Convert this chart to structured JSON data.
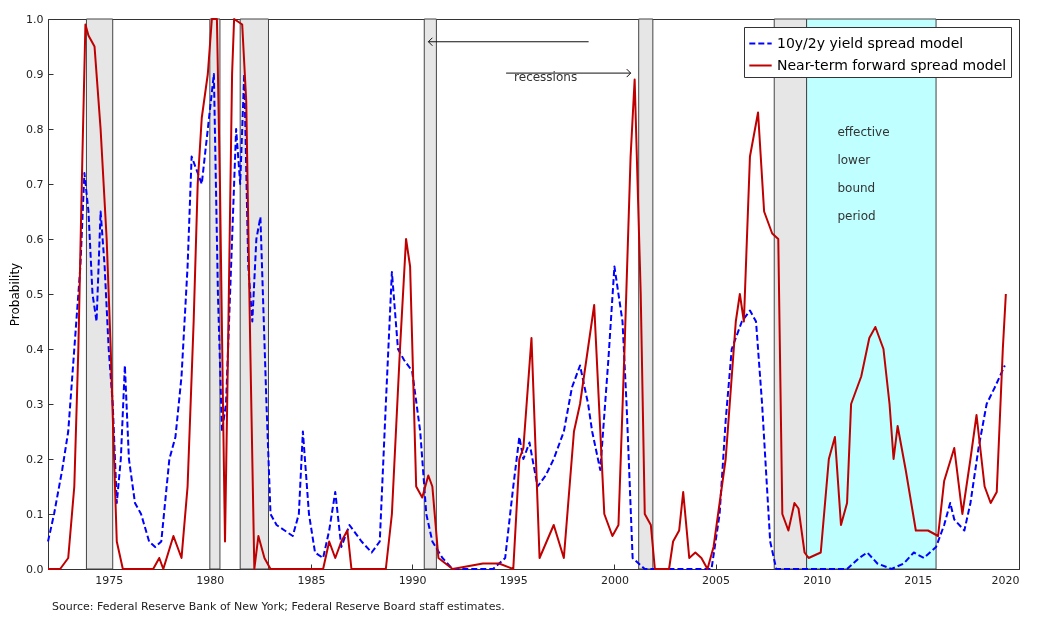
{
  "chart_data": {
    "type": "line",
    "ylabel": "Probability",
    "xlim": [
      1972,
      2020
    ],
    "xticks": [
      1975,
      1980,
      1985,
      1990,
      1995,
      2000,
      2005,
      2010,
      2015,
      2020
    ],
    "ylim": [
      0,
      1
    ],
    "yticks": [
      {
        "value": 0,
        "label": "0.0"
      },
      {
        "value": 0.1,
        "label": "0.1"
      },
      {
        "value": 0.2,
        "label": "0.2"
      },
      {
        "value": 0.3,
        "label": "0.3"
      },
      {
        "value": 0.4,
        "label": "0.4"
      },
      {
        "value": 0.5,
        "label": "0.5"
      },
      {
        "value": 0.6,
        "label": "0.6"
      },
      {
        "value": 0.7,
        "label": "0.7"
      },
      {
        "value": 0.8,
        "label": "0.8"
      },
      {
        "value": 0.9,
        "label": "0.9"
      },
      {
        "value": 1,
        "label": "1.0"
      }
    ],
    "grid": false,
    "legend": "top right",
    "series": [
      {
        "name": "10y/2y yield spread model",
        "color": "#0000ff",
        "line_style": "dashed",
        "x": [
          1972.0,
          1972.3,
          1972.7,
          1973.0,
          1973.3,
          1973.6,
          1973.8,
          1974.0,
          1974.2,
          1974.4,
          1974.6,
          1974.8,
          1975.0,
          1975.2,
          1975.4,
          1975.6,
          1975.8,
          1976.0,
          1976.3,
          1976.6,
          1977.0,
          1977.3,
          1977.6,
          1978.0,
          1978.3,
          1978.6,
          1978.9,
          1979.1,
          1979.4,
          1979.6,
          1979.9,
          1980.2,
          1980.4,
          1980.6,
          1980.8,
          1981.1,
          1981.3,
          1981.5,
          1981.7,
          1981.9,
          1982.1,
          1982.3,
          1982.5,
          1982.8,
          1983.0,
          1983.3,
          1983.7,
          1984.1,
          1984.4,
          1984.6,
          1984.9,
          1985.2,
          1985.6,
          1985.9,
          1986.2,
          1986.5,
          1986.9,
          1987.5,
          1988.0,
          1988.4,
          1988.7,
          1989.0,
          1989.3,
          1989.6,
          1990.0,
          1990.4,
          1990.7,
          1991.0,
          1991.5,
          1992.0,
          1994.0,
          1994.6,
          1995.0,
          1995.3,
          1995.5,
          1995.8,
          1996.2,
          1996.6,
          1997.0,
          1997.5,
          1997.9,
          1998.3,
          1998.7,
          1998.9,
          1999.3,
          1999.7,
          2000.0,
          2000.4,
          2000.6,
          2000.9,
          2001.5,
          2004.8,
          2005.2,
          2005.5,
          2005.8,
          2006.0,
          2006.3,
          2006.7,
          2007.0,
          2007.3,
          2007.7,
          2008.0,
          2011.5,
          2012.1,
          2012.5,
          2013.0,
          2013.7,
          2014.3,
          2014.8,
          2015.3,
          2015.9,
          2016.3,
          2016.6,
          2016.8,
          2017.3,
          2017.6,
          2018.0,
          2018.4,
          2018.8,
          2019.3
        ],
        "values": [
          0.05,
          0.1,
          0.18,
          0.25,
          0.4,
          0.55,
          0.72,
          0.65,
          0.5,
          0.45,
          0.65,
          0.55,
          0.4,
          0.3,
          0.12,
          0.2,
          0.37,
          0.2,
          0.12,
          0.1,
          0.05,
          0.04,
          0.05,
          0.2,
          0.24,
          0.35,
          0.55,
          0.75,
          0.72,
          0.7,
          0.8,
          0.9,
          0.5,
          0.25,
          0.3,
          0.6,
          0.8,
          0.7,
          0.9,
          0.55,
          0.45,
          0.6,
          0.64,
          0.3,
          0.1,
          0.08,
          0.07,
          0.06,
          0.1,
          0.25,
          0.1,
          0.03,
          0.02,
          0.07,
          0.14,
          0.04,
          0.08,
          0.05,
          0.03,
          0.05,
          0.3,
          0.54,
          0.4,
          0.38,
          0.36,
          0.25,
          0.1,
          0.05,
          0.02,
          0.0,
          0.0,
          0.02,
          0.15,
          0.24,
          0.2,
          0.23,
          0.15,
          0.17,
          0.2,
          0.25,
          0.33,
          0.37,
          0.3,
          0.25,
          0.18,
          0.38,
          0.55,
          0.45,
          0.3,
          0.02,
          0.0,
          0.0,
          0.1,
          0.27,
          0.4,
          0.42,
          0.45,
          0.47,
          0.45,
          0.3,
          0.05,
          0.0,
          0.0,
          0.02,
          0.03,
          0.01,
          0.0,
          0.01,
          0.03,
          0.02,
          0.04,
          0.08,
          0.12,
          0.09,
          0.07,
          0.12,
          0.22,
          0.3,
          0.33,
          0.37
        ]
      },
      {
        "name": "Near-term forward spread model",
        "color": "#c00000",
        "line_style": "solid",
        "x": [
          1972.0,
          1972.6,
          1973.0,
          1973.3,
          1973.5,
          1973.7,
          1973.85,
          1974.0,
          1974.3,
          1974.6,
          1974.9,
          1975.1,
          1975.25,
          1975.4,
          1975.7,
          1977.2,
          1977.5,
          1977.7,
          1978.2,
          1978.6,
          1978.9,
          1979.2,
          1979.4,
          1979.6,
          1979.9,
          1980.1,
          1980.35,
          1980.5,
          1980.65,
          1980.75,
          1980.9,
          1981.1,
          1981.2,
          1981.6,
          1981.8,
          1982.0,
          1982.2,
          1982.4,
          1982.7,
          1983.0,
          1985.6,
          1985.9,
          1986.2,
          1986.5,
          1986.8,
          1987.0,
          1987.3,
          1988.7,
          1989.0,
          1989.4,
          1989.7,
          1989.9,
          1990.2,
          1990.5,
          1990.8,
          1991.0,
          1991.3,
          1992.0,
          1993.5,
          1994.3,
          1995.0,
          1995.3,
          1995.5,
          1995.9,
          1996.3,
          1997.0,
          1997.5,
          1998.0,
          1998.3,
          1999.0,
          1999.5,
          1999.9,
          2000.2,
          2000.5,
          2000.8,
          2001.0,
          2001.3,
          2001.5,
          2001.8,
          2002.0,
          2002.7,
          2002.9,
          2003.2,
          2003.4,
          2003.7,
          2004.0,
          2004.3,
          2004.6,
          2004.9,
          2005.5,
          2006.0,
          2006.2,
          2006.4,
          2006.7,
          2007.1,
          2007.4,
          2007.8,
          2008.1,
          2008.3,
          2008.6,
          2008.9,
          2009.1,
          2009.4,
          2009.6,
          2010.2,
          2010.6,
          2010.9,
          2011.2,
          2011.5,
          2011.7,
          2012.2,
          2012.6,
          2012.9,
          2013.3,
          2013.6,
          2013.8,
          2014.0,
          2014.4,
          2014.9,
          2015.5,
          2016.0,
          2016.3,
          2016.8,
          2017.2,
          2017.6,
          2017.9,
          2018.3,
          2018.6,
          2018.9,
          2019.2,
          2019.35
        ],
        "values": [
          0.0,
          0.0,
          0.02,
          0.15,
          0.4,
          0.75,
          0.99,
          0.97,
          0.95,
          0.8,
          0.6,
          0.4,
          0.22,
          0.05,
          0.0,
          0.0,
          0.02,
          0.0,
          0.06,
          0.02,
          0.15,
          0.45,
          0.7,
          0.82,
          0.9,
          1.0,
          1.0,
          0.7,
          0.3,
          0.05,
          0.4,
          0.9,
          1.0,
          0.99,
          0.85,
          0.4,
          0.0,
          0.06,
          0.02,
          0.0,
          0.0,
          0.05,
          0.02,
          0.05,
          0.07,
          0.0,
          0.0,
          0.0,
          0.1,
          0.4,
          0.6,
          0.55,
          0.15,
          0.13,
          0.17,
          0.15,
          0.02,
          0.0,
          0.01,
          0.01,
          0.0,
          0.2,
          0.22,
          0.42,
          0.02,
          0.08,
          0.02,
          0.25,
          0.3,
          0.48,
          0.1,
          0.06,
          0.08,
          0.4,
          0.75,
          0.89,
          0.5,
          0.1,
          0.08,
          0.0,
          0.0,
          0.05,
          0.07,
          0.14,
          0.02,
          0.03,
          0.02,
          0.0,
          0.04,
          0.2,
          0.45,
          0.5,
          0.45,
          0.75,
          0.83,
          0.65,
          0.61,
          0.6,
          0.1,
          0.07,
          0.12,
          0.11,
          0.03,
          0.02,
          0.03,
          0.2,
          0.24,
          0.08,
          0.12,
          0.3,
          0.35,
          0.42,
          0.44,
          0.4,
          0.3,
          0.2,
          0.26,
          0.18,
          0.07,
          0.07,
          0.06,
          0.16,
          0.22,
          0.1,
          0.2,
          0.28,
          0.15,
          0.12,
          0.14,
          0.4,
          0.5
        ]
      }
    ],
    "bands": [
      {
        "axis": "x",
        "from": 1973.9,
        "to": 1975.2,
        "color": "#e6e6e6"
      },
      {
        "axis": "x",
        "from": 1980.0,
        "to": 1980.5,
        "color": "#e6e6e6"
      },
      {
        "axis": "x",
        "from": 1981.5,
        "to": 1982.9,
        "color": "#e6e6e6"
      },
      {
        "axis": "x",
        "from": 1990.6,
        "to": 1991.2,
        "color": "#e6e6e6"
      },
      {
        "axis": "x",
        "from": 2001.2,
        "to": 2001.9,
        "color": "#e6e6e6"
      },
      {
        "axis": "x",
        "from": 2007.9,
        "to": 2009.5,
        "color": "#e6e6e6"
      },
      {
        "axis": "x",
        "from": 2009.5,
        "to": 2015.9,
        "color": "#bfffff"
      }
    ],
    "annotations": [
      "recessions",
      "effective lower bound period",
      "Source: Federal Reserve Bank of New York; Federal Reserve Board staff estimates."
    ]
  }
}
